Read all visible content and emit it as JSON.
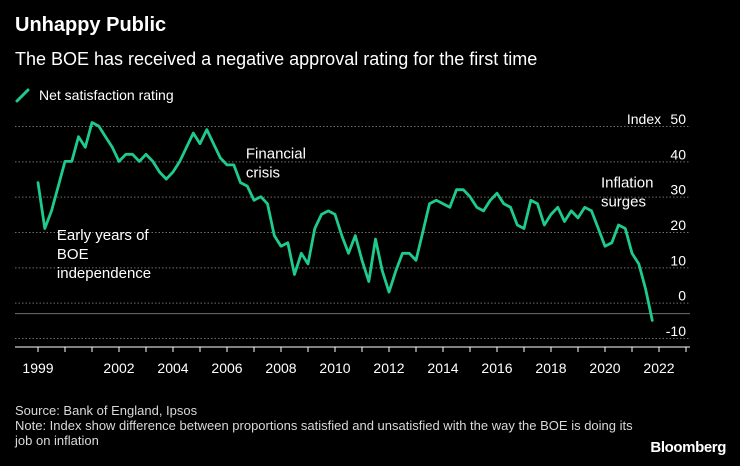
{
  "title": "Unhappy Public",
  "subtitle": "The BOE has received a negative approval rating for the first time",
  "legend": {
    "label": "Net satisfaction rating",
    "color": "#1fcb8c"
  },
  "axis": {
    "unit_label": "Index"
  },
  "footer": {
    "source": "Source: Bank of England, Ipsos",
    "note": "Note: Index show difference between proportions satisfied and unsatisfied with the way the BOE is doing its job on inflation"
  },
  "brand": "Bloomberg",
  "colors": {
    "background": "#000000",
    "line": "#1fcb8c",
    "grid": "#6e6e6e",
    "text": "#ffffff"
  },
  "chart_data": {
    "type": "line",
    "title": "Unhappy Public",
    "subtitle": "The BOE has received a negative approval rating for the first time",
    "xlabel": "",
    "ylabel": "Index",
    "xlim": [
      1998.5,
      2023.5
    ],
    "ylim": [
      -15,
      53
    ],
    "y_ticks": [
      50,
      40,
      30,
      20,
      10,
      0,
      -10
    ],
    "x_ticks": [
      1999,
      2000,
      2001,
      2002,
      2003,
      2004,
      2005,
      2006,
      2007,
      2008,
      2009,
      2010,
      2011,
      2012,
      2013,
      2014,
      2015,
      2016,
      2017,
      2018,
      2019,
      2020,
      2021,
      2022,
      2023
    ],
    "x_tick_labels": [
      "1999",
      "2002",
      "2004",
      "2006",
      "2008",
      "2010",
      "2012",
      "2014",
      "2016",
      "2018",
      "2020",
      "2022"
    ],
    "x_tick_label_years": [
      1999,
      2002,
      2004,
      2006,
      2008,
      2010,
      2012,
      2014,
      2016,
      2018,
      2020,
      2022
    ],
    "grid": true,
    "series": [
      {
        "name": "Net satisfaction rating",
        "points": [
          [
            1999.0,
            32
          ],
          [
            1999.25,
            19
          ],
          [
            1999.5,
            24
          ],
          [
            1999.75,
            31
          ],
          [
            2000.0,
            38
          ],
          [
            2000.25,
            38
          ],
          [
            2000.5,
            45
          ],
          [
            2000.75,
            42
          ],
          [
            2001.0,
            49
          ],
          [
            2001.25,
            48
          ],
          [
            2001.5,
            45
          ],
          [
            2001.75,
            42
          ],
          [
            2002.0,
            38
          ],
          [
            2002.25,
            40
          ],
          [
            2002.5,
            40
          ],
          [
            2002.75,
            38
          ],
          [
            2003.0,
            40
          ],
          [
            2003.25,
            38
          ],
          [
            2003.5,
            35
          ],
          [
            2003.75,
            33
          ],
          [
            2004.0,
            35
          ],
          [
            2004.25,
            38
          ],
          [
            2004.5,
            42
          ],
          [
            2004.75,
            46
          ],
          [
            2005.0,
            43
          ],
          [
            2005.25,
            47
          ],
          [
            2005.5,
            43
          ],
          [
            2005.75,
            39
          ],
          [
            2006.0,
            37
          ],
          [
            2006.25,
            37
          ],
          [
            2006.5,
            32
          ],
          [
            2006.75,
            31
          ],
          [
            2007.0,
            27
          ],
          [
            2007.25,
            28
          ],
          [
            2007.5,
            26
          ],
          [
            2007.75,
            17
          ],
          [
            2008.0,
            14
          ],
          [
            2008.25,
            15
          ],
          [
            2008.5,
            6
          ],
          [
            2008.75,
            12
          ],
          [
            2009.0,
            9
          ],
          [
            2009.25,
            19
          ],
          [
            2009.5,
            23
          ],
          [
            2009.75,
            24
          ],
          [
            2010.0,
            23
          ],
          [
            2010.25,
            17
          ],
          [
            2010.5,
            12
          ],
          [
            2010.75,
            17
          ],
          [
            2011.0,
            10
          ],
          [
            2011.25,
            4
          ],
          [
            2011.5,
            16
          ],
          [
            2011.75,
            7
          ],
          [
            2012.0,
            1
          ],
          [
            2012.25,
            7
          ],
          [
            2012.5,
            12
          ],
          [
            2012.75,
            12
          ],
          [
            2013.0,
            10
          ],
          [
            2013.25,
            18
          ],
          [
            2013.5,
            26
          ],
          [
            2013.75,
            27
          ],
          [
            2014.0,
            26
          ],
          [
            2014.25,
            25
          ],
          [
            2014.5,
            30
          ],
          [
            2014.75,
            30
          ],
          [
            2015.0,
            28
          ],
          [
            2015.25,
            25
          ],
          [
            2015.5,
            24
          ],
          [
            2015.75,
            27
          ],
          [
            2016.0,
            29
          ],
          [
            2016.25,
            26
          ],
          [
            2016.5,
            25
          ],
          [
            2016.75,
            20
          ],
          [
            2017.0,
            19
          ],
          [
            2017.25,
            27
          ],
          [
            2017.5,
            26
          ],
          [
            2017.75,
            20
          ],
          [
            2018.0,
            23
          ],
          [
            2018.25,
            25
          ],
          [
            2018.5,
            21
          ],
          [
            2018.75,
            24
          ],
          [
            2019.0,
            22
          ],
          [
            2019.25,
            25
          ],
          [
            2019.5,
            24
          ],
          [
            2019.75,
            19
          ],
          [
            2020.0,
            14
          ],
          [
            2020.25,
            15
          ],
          [
            2020.5,
            20
          ],
          [
            2020.75,
            19
          ],
          [
            2021.0,
            12
          ],
          [
            2021.25,
            9
          ],
          [
            2021.5,
            2
          ],
          [
            2021.75,
            -7
          ]
        ]
      }
    ],
    "annotations": [
      {
        "lines": [
          "Early years of",
          "BOE",
          "independence"
        ],
        "x": 1999.7,
        "y": 15.7
      },
      {
        "lines": [
          "Financial",
          "crisis"
        ],
        "x": 2006.7,
        "y": 38.8
      },
      {
        "lines": [
          "Inflation",
          "surges"
        ],
        "x": 2019.85,
        "y": 30.6
      }
    ]
  }
}
